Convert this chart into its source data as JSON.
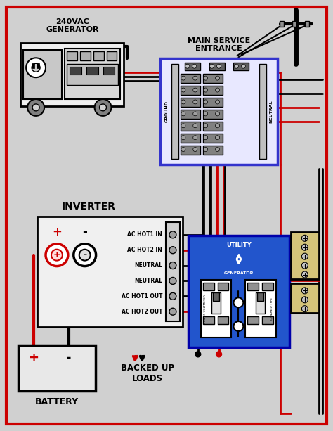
{
  "bg_color": "#d0d0d0",
  "border_color": "#cc0000",
  "line_color_black": "#000000",
  "line_color_red": "#cc0000",
  "panel_color": "#e8e8e8",
  "blue_panel": "#4444cc",
  "tan_color": "#d4c47a",
  "title": "240VAC\nGENERATOR",
  "main_service_title": "MAIN SERVICE\nENTRANCE",
  "inverter_label": "INVERTER",
  "battery_label": "BATTERY",
  "backed_up_label": "BACKED UP\nLOADS",
  "inverter_terminals": [
    "AC HOT1 IN",
    "AC HOT2 IN",
    "NEUTRAL",
    "NEUTRAL",
    "AC HOT1 OUT",
    "AC HOT2 OUT"
  ]
}
